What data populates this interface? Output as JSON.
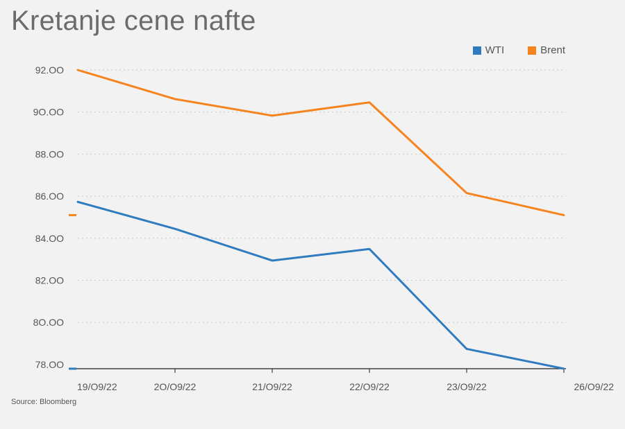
{
  "title": "Kretanje cene nafte",
  "source": "Source: Bloomberg",
  "legend": [
    {
      "label": "WTI",
      "color": "#2e7bbf"
    },
    {
      "label": "Brent",
      "color": "#f5841f"
    }
  ],
  "chart_data": {
    "type": "line",
    "title": "Kretanje cene nafte",
    "categories": [
      "19/O9/22",
      "2O/O9/22",
      "21/O9/22",
      "22/O9/22",
      "23/O9/22",
      "26/O9/22"
    ],
    "yticks": [
      "92.OO",
      "9O.OO",
      "88.OO",
      "86.OO",
      "84.OO",
      "82.OO",
      "8O.OO",
      "78.OO"
    ],
    "ylim": [
      77.8,
      92
    ],
    "grid": true,
    "legend_position": "top-right",
    "series": [
      {
        "name": "WTI",
        "color": "#2e7bbf",
        "values": [
          85.73,
          84.45,
          82.94,
          83.49,
          78.74,
          77.8
        ]
      },
      {
        "name": "Brent",
        "color": "#f5841f",
        "values": [
          92.0,
          90.62,
          89.83,
          90.46,
          86.15,
          85.1
        ]
      }
    ]
  }
}
